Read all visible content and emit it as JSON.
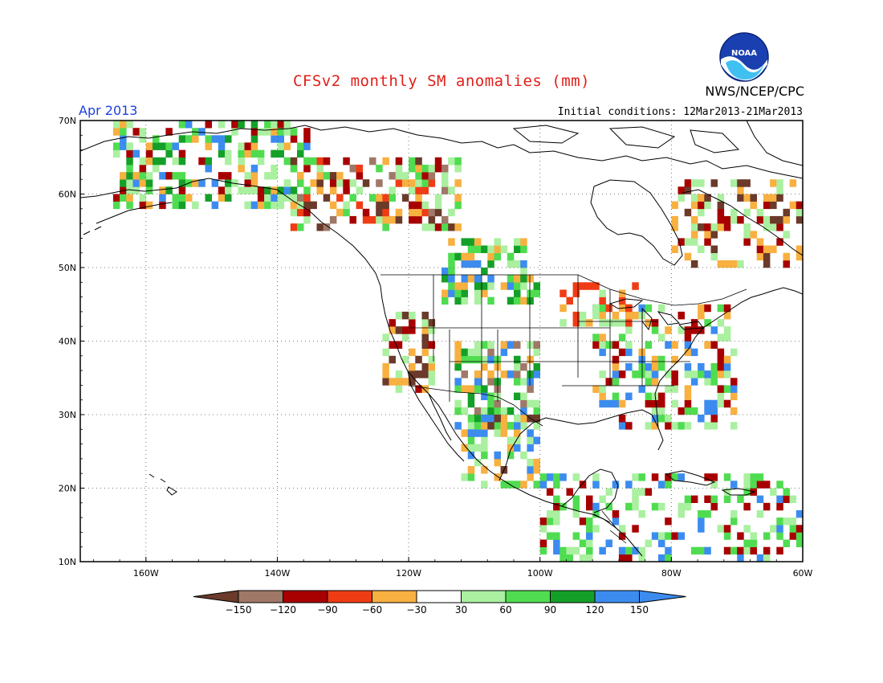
{
  "header": {
    "title": "CFSv2 monthly SM anomalies (mm)",
    "valid_month": "Apr 2013",
    "initial_conditions": "Initial conditions: 12Mar2013-21Mar2013",
    "organization": "NWS/NCEP/CPC",
    "logo_text": "NOAA"
  },
  "map": {
    "projection": "cylindrical-equidistant",
    "lon_range": [
      -170,
      -60
    ],
    "lat_range": [
      10,
      70
    ],
    "lat_labels": [
      "70N",
      "60N",
      "50N",
      "40N",
      "30N",
      "20N",
      "10N"
    ],
    "lon_labels": [
      "160W",
      "140W",
      "120W",
      "100W",
      "80W",
      "60W"
    ],
    "grid": "dotted",
    "cell_size_deg": 1
  },
  "colorbar": {
    "labels": [
      "-150",
      "-120",
      "-90",
      "-60",
      "-30",
      "30",
      "60",
      "90",
      "120",
      "150"
    ],
    "colors": [
      "#6b3a2a",
      "#a07868",
      "#a80000",
      "#f03c14",
      "#f8b040",
      "#ffffff",
      "#aaf0a0",
      "#50dc50",
      "#14a028",
      "#3c8cf0",
      "#3c8cf0"
    ]
  },
  "anomaly_regions": [
    {
      "name": "alaska-yukon-green",
      "lon": [
        -165,
        -135
      ],
      "lat": [
        58,
        70
      ],
      "cats": [
        "g1",
        "g1",
        "g2",
        "g3",
        "b1",
        "w",
        "w",
        "o1",
        "r1"
      ]
    },
    {
      "name": "western-canada-red",
      "lon": [
        -138,
        -112
      ],
      "lat": [
        55,
        65
      ],
      "cats": [
        "r1",
        "r2",
        "o1",
        "br1",
        "br2",
        "g1",
        "w",
        "w",
        "g2"
      ]
    },
    {
      "name": "prairie-green",
      "lon": [
        -115,
        -100
      ],
      "lat": [
        45,
        54
      ],
      "cats": [
        "g2",
        "g3",
        "b1",
        "g1",
        "w",
        "o1"
      ]
    },
    {
      "name": "rockies-southwest",
      "lon": [
        -113,
        -100
      ],
      "lat": [
        28,
        40
      ],
      "cats": [
        "g2",
        "b1",
        "g1",
        "o1",
        "br2",
        "w",
        "g3"
      ]
    },
    {
      "name": "mexico-west",
      "lon": [
        -112,
        -100
      ],
      "lat": [
        20,
        30
      ],
      "cats": [
        "b1",
        "g2",
        "g1",
        "br1",
        "w",
        "o1"
      ]
    },
    {
      "name": "eastern-us",
      "lon": [
        -92,
        -70
      ],
      "lat": [
        28,
        45
      ],
      "cats": [
        "g1",
        "g2",
        "w",
        "w",
        "w",
        "o1",
        "r1",
        "b1"
      ]
    },
    {
      "name": "hudson-quebec",
      "lon": [
        -80,
        -60
      ],
      "lat": [
        50,
        62
      ],
      "cats": [
        "o1",
        "r1",
        "br1",
        "g1",
        "w",
        "w",
        "w"
      ]
    },
    {
      "name": "central-america-caribbean",
      "lon": [
        -100,
        -60
      ],
      "lat": [
        10,
        22
      ],
      "cats": [
        "g1",
        "w",
        "w",
        "w",
        "g2",
        "b1",
        "r1"
      ]
    },
    {
      "name": "california-coast",
      "lon": [
        -124,
        -116
      ],
      "lat": [
        33,
        44
      ],
      "cats": [
        "o1",
        "r1",
        "br1",
        "w",
        "g1"
      ]
    },
    {
      "name": "great-lakes",
      "lon": [
        -97,
        -85
      ],
      "lat": [
        42,
        48
      ],
      "cats": [
        "r2",
        "o1",
        "w",
        "w",
        "g1"
      ]
    }
  ]
}
